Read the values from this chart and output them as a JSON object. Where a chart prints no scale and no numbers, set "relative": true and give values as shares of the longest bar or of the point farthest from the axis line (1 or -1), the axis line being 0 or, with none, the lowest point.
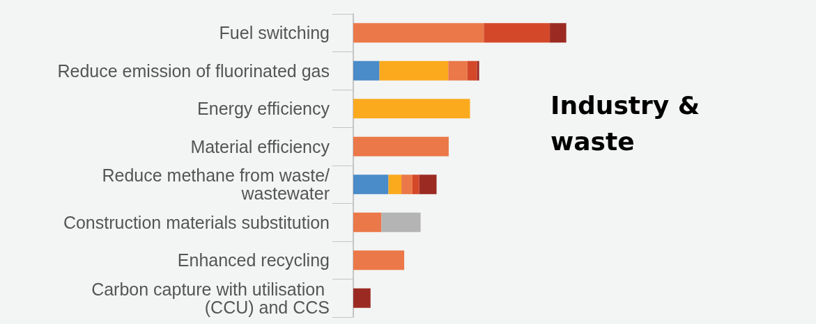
{
  "chart_data": {
    "type": "bar",
    "orientation": "horizontal",
    "stacked": true,
    "relative": true,
    "categories": [
      "Fuel switching",
      "Reduce emission of fluorinated gas",
      "Energy efficiency",
      "Material efficiency",
      "Reduce methane from waste/wastewater",
      "Construction materials substitution",
      "Enhanced recycling",
      "Carbon capture with utilisation (CCU) and CCS"
    ],
    "series": [
      {
        "color": "#4a8bc9",
        "values": [
          null,
          0.123,
          null,
          null,
          0.165,
          null,
          null,
          null
        ]
      },
      {
        "color": "#fbaa1e",
        "values": [
          null,
          0.323,
          0.548,
          null,
          0.061,
          null,
          null,
          null
        ]
      },
      {
        "color": "#eb7848",
        "values": [
          0.613,
          0.09,
          null,
          0.448,
          0.052,
          0.132,
          0.239,
          null
        ]
      },
      {
        "color": "#d4482a",
        "values": [
          0.31,
          0.045,
          null,
          null,
          0.032,
          null,
          null,
          null
        ]
      },
      {
        "color": "#9b2b22",
        "values": [
          0.077,
          0.01,
          null,
          null,
          0.081,
          null,
          null,
          0.081
        ]
      },
      {
        "color": "#b4b4b4",
        "values": [
          null,
          null,
          null,
          null,
          null,
          0.184,
          null,
          null
        ]
      }
    ],
    "annotations": [
      "Industry & waste"
    ]
  }
}
